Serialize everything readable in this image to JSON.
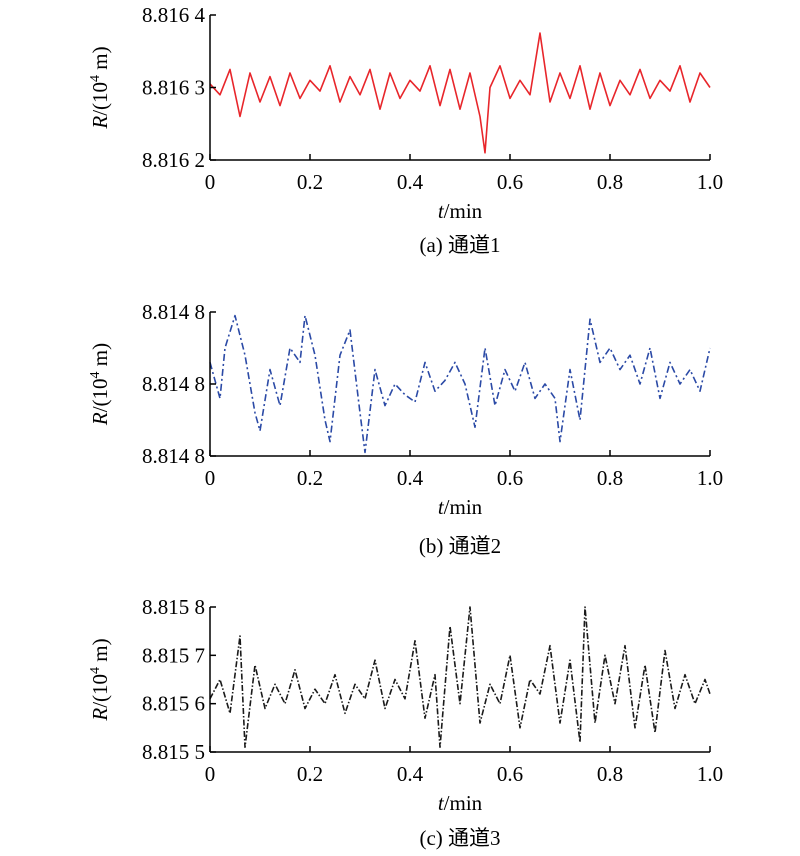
{
  "chart_data": [
    {
      "type": "line",
      "caption": "(a) 通道1",
      "xlabel": {
        "var": "t",
        "rest": "/min"
      },
      "ylabel": {
        "var": "R",
        "pre": "/(10",
        "sup": "4",
        "post": " m)"
      },
      "xlim": [
        0,
        1.0
      ],
      "ylim": [
        2,
        4
      ],
      "xticks": [
        {
          "value": 0,
          "label": "0"
        },
        {
          "value": 0.2,
          "label": "0.2"
        },
        {
          "value": 0.4,
          "label": "0.4"
        },
        {
          "value": 0.6,
          "label": "0.6"
        },
        {
          "value": 0.8,
          "label": "0.8"
        },
        {
          "value": 1.0,
          "label": "1.0"
        }
      ],
      "yticks": [
        {
          "value": 4,
          "label": "8.816 4"
        },
        {
          "value": 3,
          "label": "8.816 3"
        },
        {
          "value": 2,
          "label": "8.816 2"
        }
      ],
      "series": [
        {
          "color": "#e8262b",
          "dash": "",
          "x": [
            0,
            0.02,
            0.04,
            0.06,
            0.08,
            0.1,
            0.12,
            0.14,
            0.16,
            0.18,
            0.2,
            0.22,
            0.24,
            0.26,
            0.28,
            0.3,
            0.32,
            0.34,
            0.36,
            0.38,
            0.4,
            0.42,
            0.44,
            0.46,
            0.48,
            0.5,
            0.52,
            0.54,
            0.55,
            0.56,
            0.58,
            0.6,
            0.62,
            0.64,
            0.66,
            0.68,
            0.7,
            0.72,
            0.74,
            0.76,
            0.78,
            0.8,
            0.82,
            0.84,
            0.86,
            0.88,
            0.9,
            0.92,
            0.94,
            0.96,
            0.98,
            1.0
          ],
          "y": [
            3.05,
            2.9,
            3.25,
            2.6,
            3.2,
            2.8,
            3.15,
            2.75,
            3.2,
            2.85,
            3.1,
            2.95,
            3.3,
            2.8,
            3.15,
            2.9,
            3.25,
            2.7,
            3.2,
            2.85,
            3.1,
            2.95,
            3.3,
            2.75,
            3.25,
            2.7,
            3.2,
            2.6,
            2.1,
            3.0,
            3.3,
            2.85,
            3.1,
            2.9,
            3.75,
            2.8,
            3.2,
            2.85,
            3.3,
            2.7,
            3.2,
            2.75,
            3.1,
            2.9,
            3.25,
            2.85,
            3.1,
            2.95,
            3.3,
            2.8,
            3.2,
            3.0
          ]
        }
      ]
    },
    {
      "type": "line",
      "caption": "(b) 通道2",
      "xlabel": {
        "var": "t",
        "rest": "/min"
      },
      "ylabel": {
        "var": "R",
        "pre": "/(10",
        "sup": "4",
        "post": " m)"
      },
      "xlim": [
        0,
        1.0
      ],
      "ylim": [
        0,
        2
      ],
      "xticks": [
        {
          "value": 0,
          "label": "0"
        },
        {
          "value": 0.2,
          "label": "0.2"
        },
        {
          "value": 0.4,
          "label": "0.4"
        },
        {
          "value": 0.6,
          "label": "0.6"
        },
        {
          "value": 0.8,
          "label": "0.8"
        },
        {
          "value": 1.0,
          "label": "1.0"
        }
      ],
      "yticks": [
        {
          "value": 2,
          "label": "8.814 8"
        },
        {
          "value": 1,
          "label": "8.814 8"
        },
        {
          "value": 0,
          "label": "8.814 8"
        }
      ],
      "series": [
        {
          "color": "#2b4aa6",
          "dash": "7,3,2,3",
          "x": [
            0,
            0.02,
            0.03,
            0.05,
            0.07,
            0.09,
            0.1,
            0.12,
            0.14,
            0.16,
            0.18,
            0.19,
            0.21,
            0.23,
            0.24,
            0.26,
            0.28,
            0.3,
            0.31,
            0.33,
            0.35,
            0.37,
            0.39,
            0.41,
            0.43,
            0.45,
            0.47,
            0.49,
            0.51,
            0.53,
            0.55,
            0.57,
            0.59,
            0.61,
            0.63,
            0.65,
            0.67,
            0.69,
            0.7,
            0.72,
            0.74,
            0.76,
            0.78,
            0.8,
            0.82,
            0.84,
            0.86,
            0.88,
            0.9,
            0.92,
            0.94,
            0.96,
            0.98,
            1.0
          ],
          "y": [
            1.3,
            0.8,
            1.5,
            1.95,
            1.4,
            0.6,
            0.35,
            1.2,
            0.7,
            1.5,
            1.3,
            1.95,
            1.4,
            0.5,
            0.2,
            1.4,
            1.75,
            0.6,
            0.05,
            1.2,
            0.7,
            1.0,
            0.85,
            0.75,
            1.3,
            0.9,
            1.05,
            1.3,
            1.0,
            0.4,
            1.5,
            0.7,
            1.2,
            0.9,
            1.3,
            0.8,
            1.0,
            0.8,
            0.2,
            1.2,
            0.5,
            1.9,
            1.3,
            1.5,
            1.2,
            1.4,
            1.0,
            1.5,
            0.8,
            1.3,
            1.0,
            1.2,
            0.9,
            1.5
          ]
        }
      ]
    },
    {
      "type": "line",
      "caption": "(c) 通道3",
      "xlabel": {
        "var": "t",
        "rest": "/min"
      },
      "ylabel": {
        "var": "R",
        "pre": "/(10",
        "sup": "4",
        "post": " m)"
      },
      "xlim": [
        0,
        1.0
      ],
      "ylim": [
        5,
        8
      ],
      "xticks": [
        {
          "value": 0,
          "label": "0"
        },
        {
          "value": 0.2,
          "label": "0.2"
        },
        {
          "value": 0.4,
          "label": "0.4"
        },
        {
          "value": 0.6,
          "label": "0.6"
        },
        {
          "value": 0.8,
          "label": "0.8"
        },
        {
          "value": 1.0,
          "label": "1.0"
        }
      ],
      "yticks": [
        {
          "value": 8,
          "label": "8.815 8"
        },
        {
          "value": 7,
          "label": "8.815 7"
        },
        {
          "value": 6,
          "label": "8.815 6"
        },
        {
          "value": 5,
          "label": "8.815 5"
        }
      ],
      "series": [
        {
          "color": "#1a1a1a",
          "dash": "6,2,1.5,2",
          "x": [
            0,
            0.02,
            0.04,
            0.06,
            0.07,
            0.09,
            0.11,
            0.13,
            0.15,
            0.17,
            0.19,
            0.21,
            0.23,
            0.25,
            0.27,
            0.29,
            0.31,
            0.33,
            0.35,
            0.37,
            0.39,
            0.41,
            0.43,
            0.45,
            0.46,
            0.48,
            0.5,
            0.52,
            0.54,
            0.56,
            0.58,
            0.6,
            0.62,
            0.64,
            0.66,
            0.68,
            0.7,
            0.72,
            0.74,
            0.75,
            0.77,
            0.79,
            0.81,
            0.83,
            0.85,
            0.87,
            0.89,
            0.91,
            0.93,
            0.95,
            0.97,
            0.99,
            1.0
          ],
          "y": [
            6.1,
            6.5,
            5.8,
            7.4,
            5.1,
            6.8,
            5.9,
            6.4,
            6.0,
            6.7,
            5.9,
            6.3,
            6.0,
            6.6,
            5.8,
            6.4,
            6.1,
            6.9,
            5.9,
            6.5,
            6.1,
            7.3,
            5.7,
            6.6,
            5.1,
            7.6,
            6.0,
            8.0,
            5.6,
            6.4,
            6.0,
            7.0,
            5.5,
            6.5,
            6.2,
            7.2,
            5.6,
            6.9,
            5.2,
            8.0,
            5.6,
            7.0,
            6.0,
            7.2,
            5.5,
            6.8,
            5.4,
            7.1,
            5.9,
            6.6,
            6.0,
            6.5,
            6.2
          ]
        }
      ]
    }
  ]
}
